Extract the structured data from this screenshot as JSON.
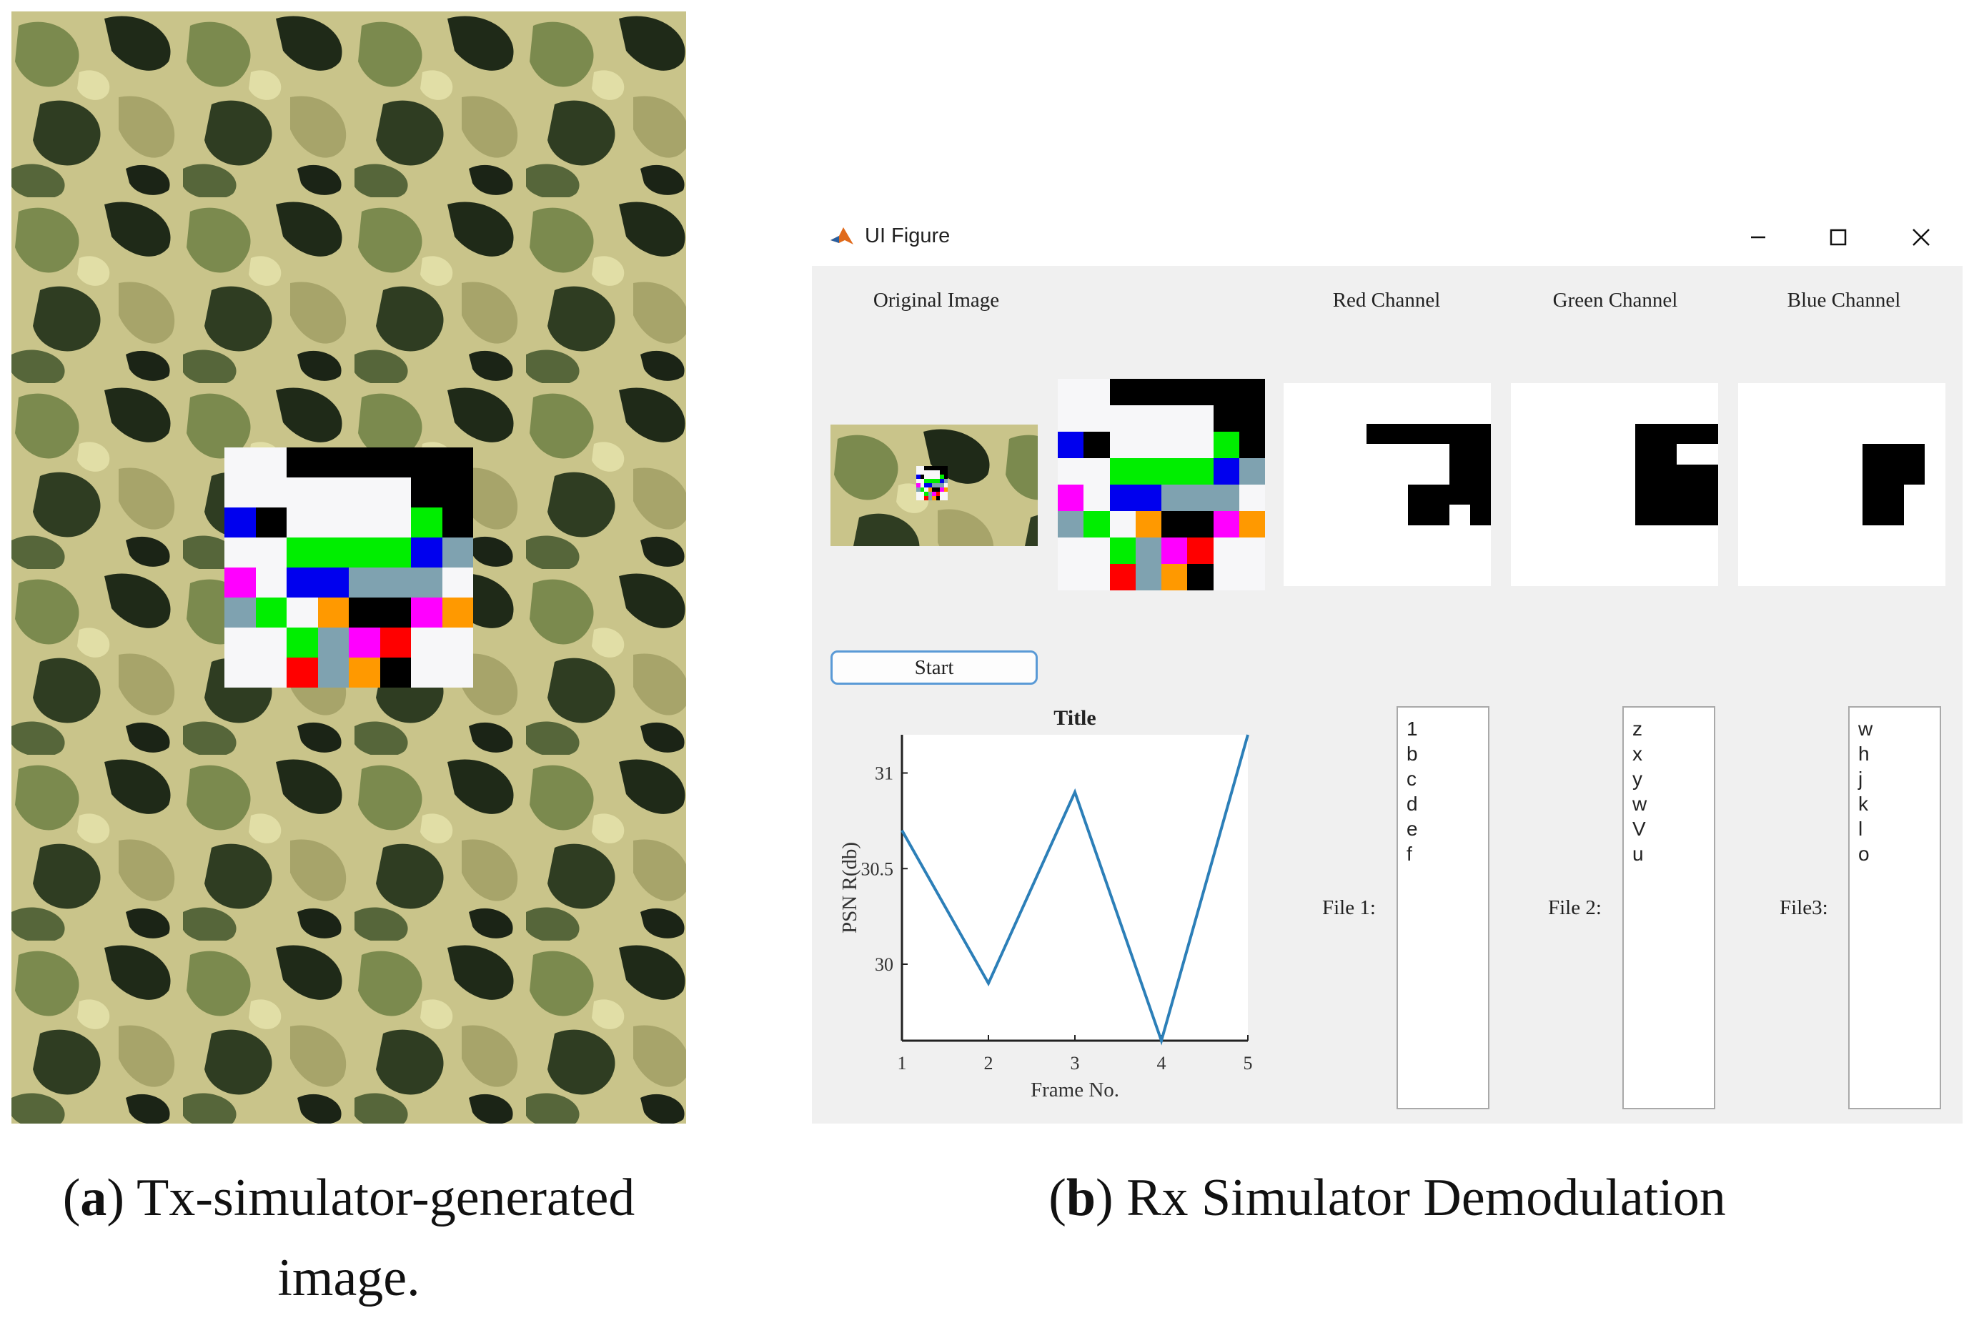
{
  "caption_a": {
    "label": "a",
    "text": "Tx-simulator-generated image."
  },
  "caption_b": {
    "label": "b",
    "text": "Rx Simulator Demodulation"
  },
  "window": {
    "title": "UI Figure",
    "controls": [
      "minimize",
      "maximize",
      "close"
    ]
  },
  "headers": {
    "original": "Original Image",
    "red": "Red Channel",
    "green": "Green Channel",
    "blue": "Blue Channel"
  },
  "start_button": "Start",
  "colors": {
    "white": "#f7f7f9",
    "black": "#000000",
    "blue": "#0000ee",
    "green": "#00ee00",
    "magenta": "#ff00ff",
    "gray": "#7fa2b0",
    "orange": "#ff9900",
    "red": "#ff0000",
    "plot_line": "#2c7fb8",
    "accent": "#5a9ad6"
  },
  "code_grid": [
    [
      "W",
      "W",
      "K",
      "K",
      "K",
      "K",
      "K",
      "K"
    ],
    [
      "W",
      "W",
      "W",
      "W",
      "W",
      "W",
      "K",
      "K"
    ],
    [
      "B",
      "K",
      "W",
      "W",
      "W",
      "W",
      "G",
      "K"
    ],
    [
      "W",
      "W",
      "G",
      "G",
      "G",
      "G",
      "B",
      "Y"
    ],
    [
      "M",
      "W",
      "B",
      "B",
      "Y",
      "Y",
      "Y",
      "W"
    ],
    [
      "Y",
      "G",
      "W",
      "O",
      "K",
      "K",
      "M",
      "O"
    ],
    [
      "W",
      "W",
      "G",
      "Y",
      "M",
      "R",
      "W",
      "W"
    ],
    [
      "W",
      "W",
      "R",
      "Y",
      "O",
      "K",
      "W",
      "W"
    ]
  ],
  "channel_grids": {
    "red": [
      "##########",
      "##########",
      "####......",
      "########..",
      "########..",
      "######....",
      "######..#.",
      "##########",
      "##########",
      "##########"
    ],
    "green": [
      "##########",
      "##########",
      "######....",
      "######..##",
      "######....",
      "######....",
      "######....",
      "##########",
      "##########",
      "##########"
    ],
    "blue": [
      "##########",
      "##########",
      "##########",
      "######...#",
      "######...#",
      "######..##",
      "######..##",
      "##########",
      "##########",
      "##########"
    ]
  },
  "chart_data": {
    "type": "line",
    "title": "Title",
    "xlabel": "Frame No.",
    "ylabel": "PSN R(db)",
    "x": [
      1,
      2,
      3,
      4,
      5
    ],
    "series": [
      {
        "values": [
          30.7,
          29.9,
          30.9,
          29.6,
          31.2
        ]
      }
    ],
    "xlim": [
      1,
      5
    ],
    "ylim": [
      29.6,
      31.2
    ],
    "xticks": [
      "1",
      "2",
      "3",
      "4",
      "5"
    ],
    "yticks": [
      "30",
      "30.5",
      "31"
    ],
    "ytick_values": [
      30,
      30.5,
      31
    ],
    "grid": false
  },
  "files": [
    {
      "label": "File 1:",
      "items": [
        "1",
        "b",
        "c",
        "d",
        "e",
        "f"
      ]
    },
    {
      "label": "File 2:",
      "items": [
        "z",
        "x",
        "y",
        "w",
        "V",
        "u"
      ]
    },
    {
      "label": "File3:",
      "items": [
        "w",
        "h",
        "j",
        "k",
        "l",
        "o"
      ]
    }
  ]
}
